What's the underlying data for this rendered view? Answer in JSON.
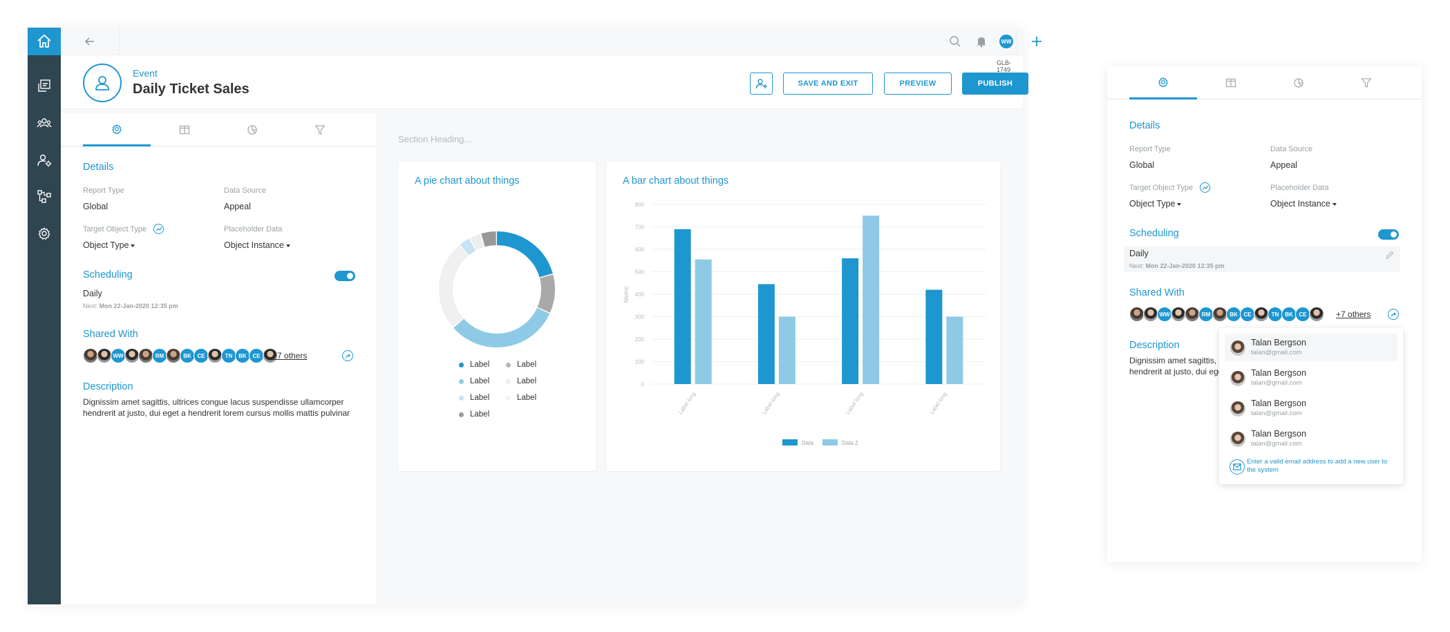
{
  "topbar": {
    "avatar_initials": "WW"
  },
  "header": {
    "kind": "Event",
    "title": "Daily Ticket Sales",
    "code": "GLB-1749",
    "save_exit": "SAVE AND EXIT",
    "preview": "PREVIEW",
    "publish": "PUBLISH"
  },
  "panel": {
    "details_heading": "Details",
    "report_type_label": "Report Type",
    "report_type_value": "Global",
    "data_source_label": "Data Source",
    "data_source_value": "Appeal",
    "target_type_label": "Target Object Type",
    "target_type_value": "Object Type",
    "placeholder_label": "Placeholder Data",
    "placeholder_value": "Object Instance",
    "scheduling_heading": "Scheduling",
    "schedule_value": "Daily",
    "next_prefix": "Next:",
    "next_value": "Mon 22-Jan-2020 12:35 pm",
    "shared_heading": "Shared With",
    "avatars": [
      "",
      "",
      "WW",
      "",
      "",
      "RM",
      "",
      "BK",
      "CE",
      "",
      "TN",
      "BK",
      "CE",
      ""
    ],
    "others": "+7 others",
    "description_heading": "Description",
    "description": "Dignissim amet sagittis, ultrices congue lacus suspendisse ullamcorper hendrerit at justo, dui eget a hendrerit lorem cursus mollis mattis pulvinar"
  },
  "main": {
    "section_heading": "Section Heading..."
  },
  "pie": {
    "title": "A pie chart about things",
    "legend": [
      "Label",
      "Label",
      "Label",
      "Label",
      "Label",
      "Label",
      "Label"
    ],
    "colors": [
      "#1e96cf",
      "#a9a9a9",
      "#8ecae6",
      "#f0f0f0",
      "#c5e3f2",
      "#eeeeee",
      "#999999"
    ]
  },
  "bar": {
    "title": "A bar chart about things",
    "legend": [
      "Data",
      "Data 2"
    ],
    "colors": [
      "#1e96cf",
      "#8ecae6"
    ]
  },
  "chart_data": [
    {
      "type": "pie",
      "title": "A pie chart about things",
      "labels": [
        "Label",
        "Label",
        "Label",
        "Label",
        "Label",
        "Label",
        "Label"
      ],
      "values": [
        19,
        10,
        29,
        23,
        3,
        3,
        4
      ]
    },
    {
      "type": "bar",
      "title": "A bar chart about things",
      "categories": [
        "Label long",
        "Label long",
        "Label long",
        "Label long"
      ],
      "series": [
        {
          "name": "Data",
          "values": [
            690,
            445,
            560,
            420
          ]
        },
        {
          "name": "Data 2",
          "values": [
            555,
            300,
            750,
            300
          ]
        }
      ],
      "ylabel": "Metric",
      "yticks": [
        0,
        100,
        200,
        300,
        400,
        500,
        600,
        700,
        800
      ],
      "ylim": [
        0,
        800
      ],
      "grid": true,
      "legend": "bottom"
    }
  ],
  "dropdown": {
    "people": [
      {
        "name": "Talan Bergson",
        "email": "talan@gmail.com"
      },
      {
        "name": "Talan Bergson",
        "email": "talan@gmail.com"
      },
      {
        "name": "Talan Bergson",
        "email": "talan@gmail.com"
      },
      {
        "name": "Talan Bergson",
        "email": "talan@gmail.com"
      }
    ],
    "hint": "Enter a valid email address to add a new user to the system"
  }
}
